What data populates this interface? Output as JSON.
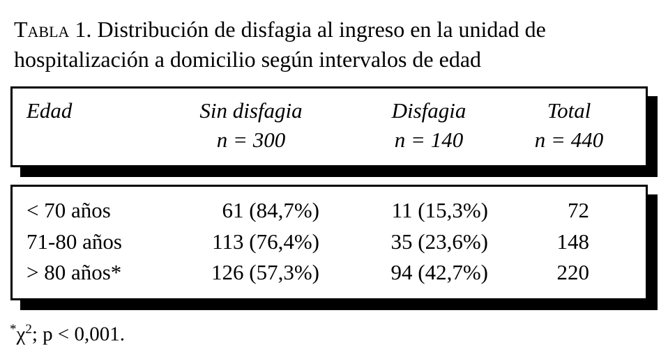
{
  "caption": {
    "label": "Tabla 1.",
    "text": "Distribución de disfagia al ingreso en la unidad de",
    "text2": "hospitalización a domicilio según intervalos de edad"
  },
  "table": {
    "header": [
      {
        "label": "Edad"
      },
      {
        "label": "Sin disfagia",
        "n": "n = 300"
      },
      {
        "label": "Disfagia",
        "n": "n = 140"
      },
      {
        "label": "Total",
        "n": "n = 440"
      }
    ],
    "rows": [
      [
        "< 70 años",
        "61 (84,7%)",
        "11 (15,3%)",
        "72"
      ],
      [
        "71-80 años",
        "113 (76,4%)",
        "35 (23,6%)",
        "148"
      ],
      [
        "> 80 años*",
        "126 (57,3%)",
        "94 (42,7%)",
        "220"
      ]
    ]
  },
  "footnote": {
    "mark": "*",
    "symbol": "χ",
    "sup": "2",
    "text": "; p < 0,001."
  }
}
